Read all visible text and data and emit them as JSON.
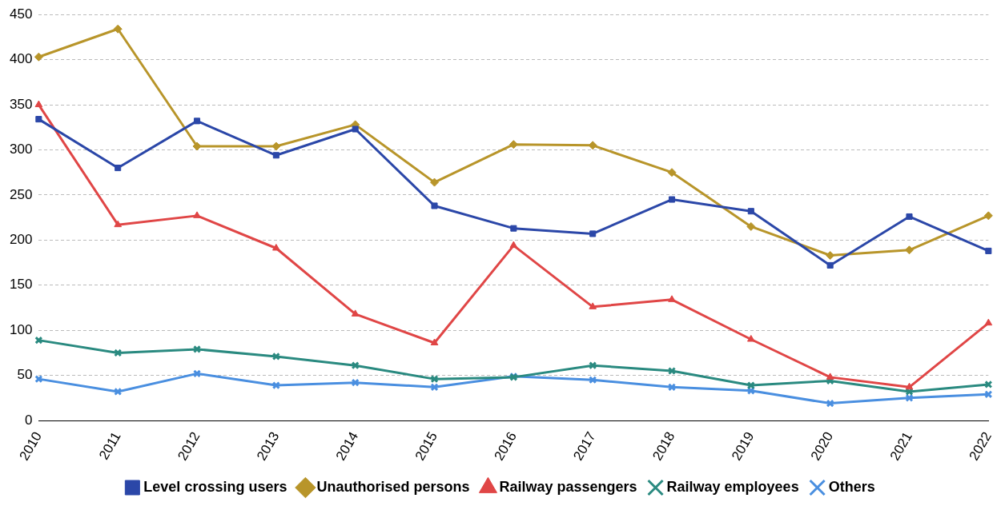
{
  "chart_data": {
    "type": "line",
    "categories": [
      "2010",
      "2011",
      "2012",
      "2013",
      "2014",
      "2015",
      "2016",
      "2017",
      "2018",
      "2019",
      "2020",
      "2021",
      "2022"
    ],
    "series": [
      {
        "name": "Level crossing users",
        "color": "#2b47a8",
        "marker": "square",
        "values": [
          334,
          280,
          332,
          294,
          323,
          238,
          213,
          207,
          245,
          232,
          172,
          226,
          188
        ]
      },
      {
        "name": "Unauthorised persons",
        "color": "#b8952a",
        "marker": "diamond",
        "values": [
          403,
          434,
          304,
          304,
          328,
          264,
          306,
          305,
          275,
          215,
          183,
          189,
          227
        ]
      },
      {
        "name": "Railway passengers",
        "color": "#e04646",
        "marker": "triangle",
        "values": [
          350,
          217,
          227,
          191,
          118,
          86,
          194,
          126,
          134,
          90,
          48,
          37,
          108
        ]
      },
      {
        "name": "Railway employees",
        "color": "#2a8a80",
        "marker": "cross",
        "values": [
          89,
          75,
          79,
          71,
          61,
          46,
          48,
          61,
          55,
          39,
          44,
          32,
          40
        ]
      },
      {
        "name": "Others",
        "color": "#4a8fe0",
        "marker": "cross",
        "values": [
          46,
          32,
          52,
          39,
          42,
          37,
          49,
          45,
          37,
          33,
          19,
          25,
          29
        ]
      }
    ],
    "ylim": [
      0,
      450
    ],
    "yticks": [
      0,
      50,
      100,
      150,
      200,
      250,
      300,
      350,
      400,
      450
    ],
    "grid": "y",
    "legend": "bottom",
    "line_style": "solid"
  }
}
